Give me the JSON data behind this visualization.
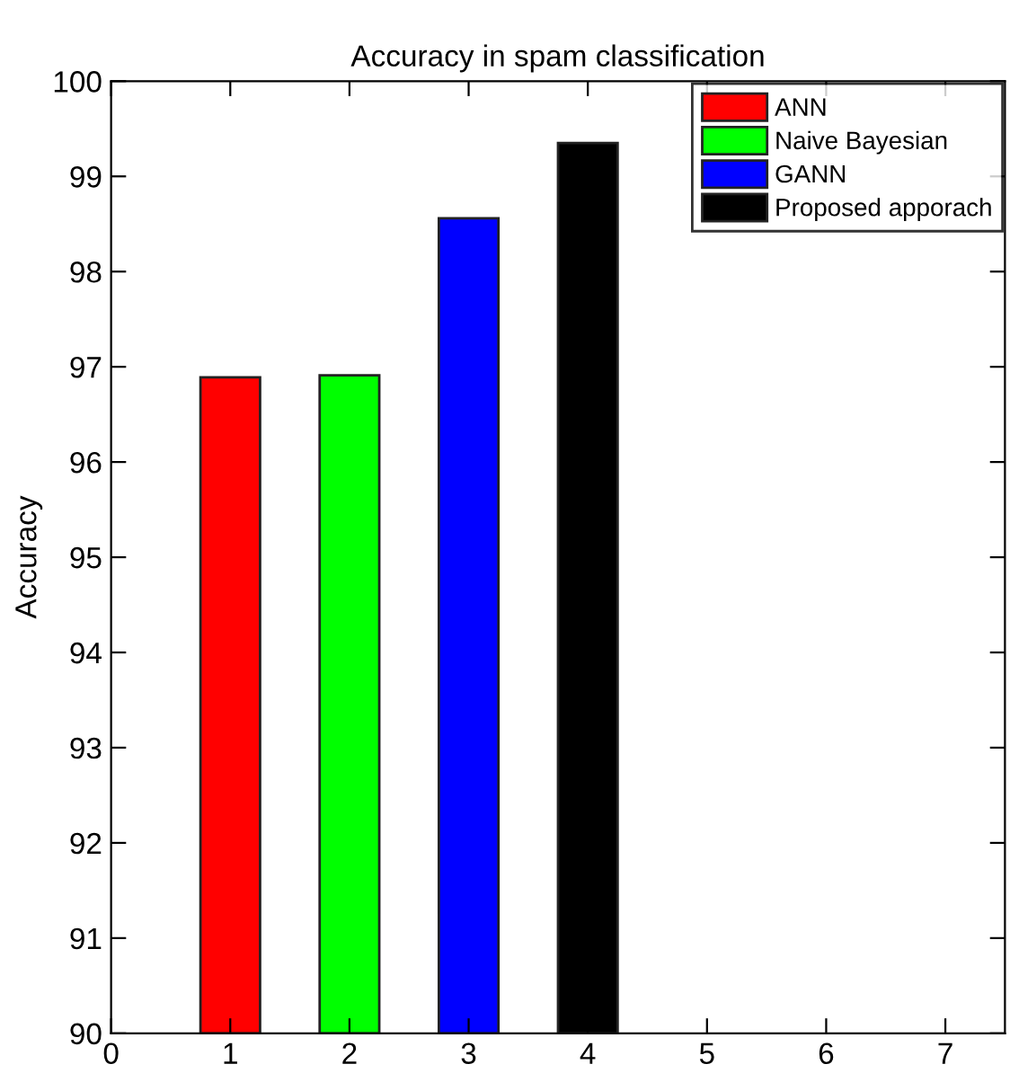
{
  "chart_data": {
    "type": "bar",
    "title": "Accuracy in spam classification",
    "ylabel": "Accuracy",
    "series": [
      {
        "name": "ANN",
        "color": "#ff0000",
        "x": [
          1
        ],
        "values": [
          96.89
        ]
      },
      {
        "name": "Naive Bayesian",
        "color": "#00ff00",
        "x": [
          2
        ],
        "values": [
          96.91
        ]
      },
      {
        "name": "GANN",
        "color": "#0000ff",
        "x": [
          3
        ],
        "values": [
          98.56
        ]
      },
      {
        "name": "Proposed apporach",
        "color": "#000000",
        "x": [
          4
        ],
        "values": [
          99.35
        ]
      }
    ],
    "xlim": [
      0,
      7.5
    ],
    "xticks": [
      0,
      1,
      2,
      3,
      4,
      5,
      6,
      7
    ],
    "ylim": [
      90,
      100
    ],
    "yticks": [
      90,
      91,
      92,
      93,
      94,
      95,
      96,
      97,
      98,
      99,
      100
    ],
    "legend": "top right",
    "grid": false
  }
}
